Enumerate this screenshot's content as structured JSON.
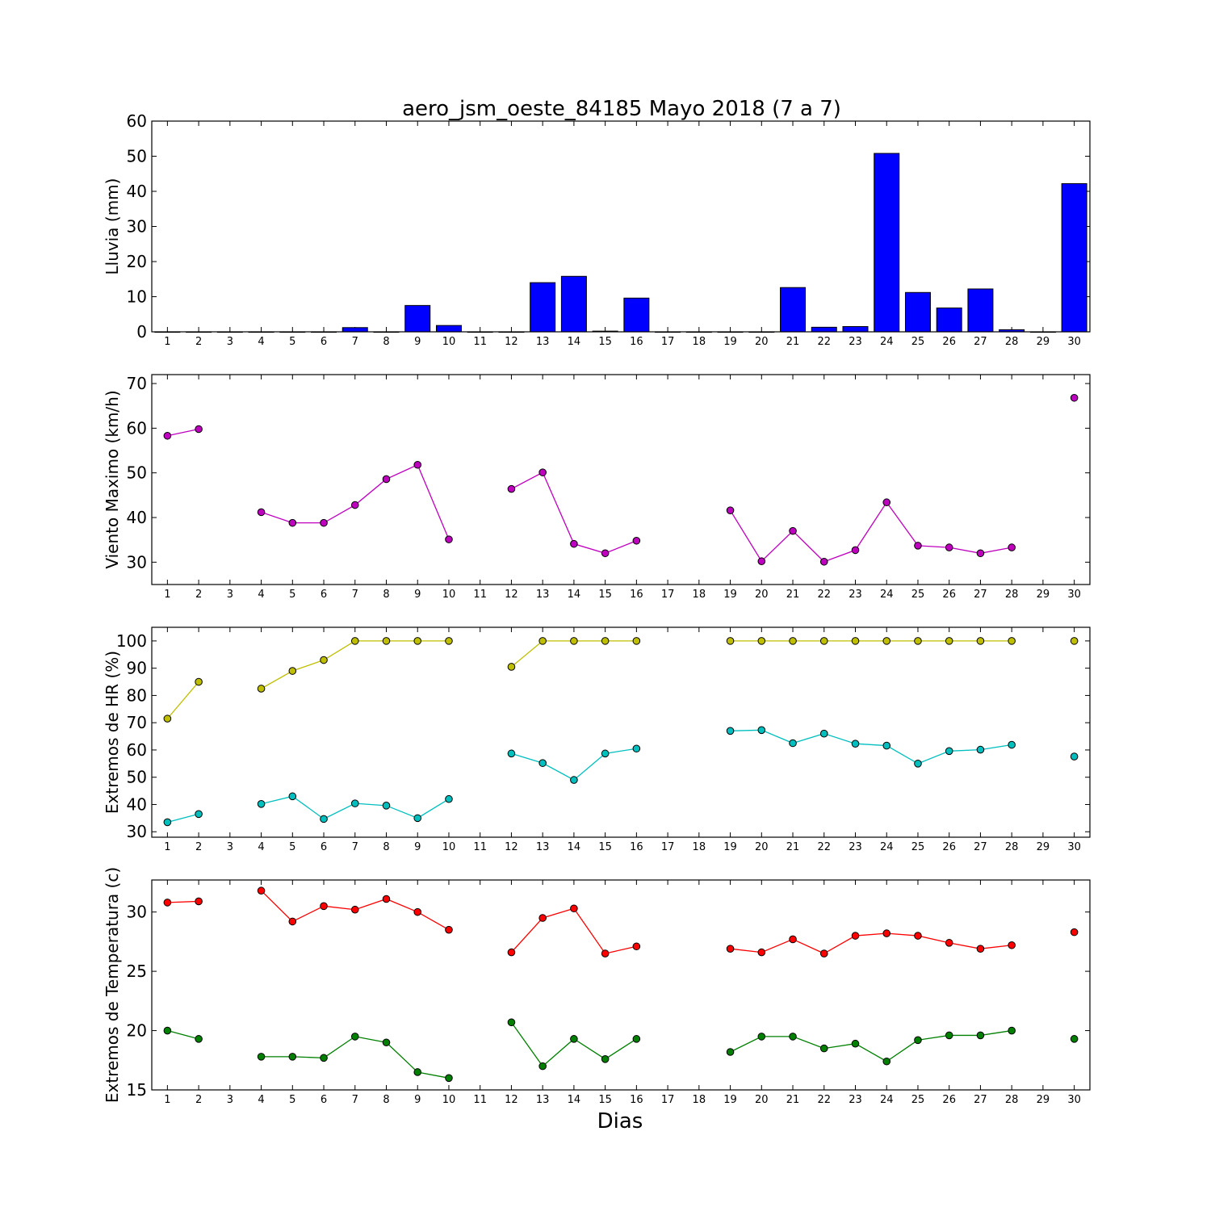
{
  "title": "aero_jsm_oeste_84185 Mayo 2018  (7 a 7)",
  "xlabel": "Dias",
  "x_ticks": [
    "1",
    "2",
    "3",
    "4",
    "5",
    "6",
    "7",
    "8",
    "9",
    "10",
    "11",
    "12",
    "13",
    "14",
    "15",
    "16",
    "17",
    "18",
    "19",
    "20",
    "21",
    "22",
    "23",
    "24",
    "25",
    "26",
    "27",
    "28",
    "29",
    "30"
  ],
  "chart_data": [
    {
      "type": "bar",
      "ylabel": "Lluvia (mm)",
      "ylim": [
        0,
        60
      ],
      "yticks": [
        0,
        10,
        20,
        30,
        40,
        50,
        60
      ],
      "color": "#0000ff",
      "x": [
        1,
        2,
        3,
        4,
        5,
        6,
        7,
        8,
        9,
        10,
        11,
        12,
        13,
        14,
        15,
        16,
        17,
        18,
        19,
        20,
        21,
        22,
        23,
        24,
        25,
        26,
        27,
        28,
        29,
        30
      ],
      "values": [
        0,
        0,
        0,
        0,
        0,
        0,
        1.2,
        0,
        7.5,
        1.8,
        0,
        0,
        14,
        15.8,
        0.2,
        9.6,
        0,
        0,
        0,
        0,
        12.6,
        1.3,
        1.5,
        50.8,
        11.2,
        6.8,
        12.2,
        0.6,
        0,
        42.2
      ]
    },
    {
      "type": "line",
      "ylabel": "Viento Maximo (km/h)",
      "ylim": [
        25,
        72
      ],
      "yticks": [
        30,
        40,
        50,
        60,
        70
      ],
      "series": [
        {
          "color": "#bf00bf",
          "x": [
            1,
            2,
            3,
            4,
            5,
            6,
            7,
            8,
            9,
            10,
            11,
            12,
            13,
            14,
            15,
            16,
            17,
            18,
            19,
            20,
            21,
            22,
            23,
            24,
            25,
            26,
            27,
            28,
            29,
            30
          ],
          "values": [
            58.3,
            59.8,
            null,
            41.2,
            38.8,
            38.8,
            42.8,
            48.6,
            51.8,
            35.1,
            null,
            46.4,
            50.1,
            34.1,
            32.0,
            34.8,
            null,
            null,
            41.6,
            30.2,
            37.0,
            30.1,
            32.7,
            43.4,
            33.7,
            33.3,
            32.0,
            33.3,
            null,
            66.8
          ]
        }
      ]
    },
    {
      "type": "line",
      "ylabel": "Extremos de HR (%)",
      "ylim": [
        28,
        105
      ],
      "yticks": [
        30,
        40,
        50,
        60,
        70,
        80,
        90,
        100
      ],
      "series": [
        {
          "color": "#bfbf00",
          "x": [
            1,
            2,
            3,
            4,
            5,
            6,
            7,
            8,
            9,
            10,
            11,
            12,
            13,
            14,
            15,
            16,
            17,
            18,
            19,
            20,
            21,
            22,
            23,
            24,
            25,
            26,
            27,
            28,
            29,
            30
          ],
          "values": [
            71.5,
            85,
            null,
            82.5,
            89,
            93,
            100,
            100,
            100,
            100,
            null,
            90.5,
            100,
            100,
            100,
            100,
            null,
            null,
            100,
            100,
            100,
            100,
            100,
            100,
            100,
            100,
            100,
            100,
            null,
            100
          ]
        },
        {
          "color": "#00bfbf",
          "x": [
            1,
            2,
            3,
            4,
            5,
            6,
            7,
            8,
            9,
            10,
            11,
            12,
            13,
            14,
            15,
            16,
            17,
            18,
            19,
            20,
            21,
            22,
            23,
            24,
            25,
            26,
            27,
            28,
            29,
            30
          ],
          "values": [
            33.5,
            36.5,
            null,
            40.2,
            43,
            34.7,
            40.4,
            39.6,
            35,
            42,
            null,
            58.7,
            55.2,
            49,
            58.7,
            60.5,
            null,
            null,
            67,
            67.3,
            62.5,
            66,
            62.3,
            61.6,
            55,
            59.6,
            60.1,
            61.9,
            null,
            57.6
          ]
        }
      ]
    },
    {
      "type": "line",
      "ylabel": "Extremos de Temperatura (c)",
      "ylim": [
        15,
        32.7
      ],
      "yticks": [
        15,
        20,
        25,
        30
      ],
      "series": [
        {
          "color": "#ff0000",
          "x": [
            1,
            2,
            3,
            4,
            5,
            6,
            7,
            8,
            9,
            10,
            11,
            12,
            13,
            14,
            15,
            16,
            17,
            18,
            19,
            20,
            21,
            22,
            23,
            24,
            25,
            26,
            27,
            28,
            29,
            30
          ],
          "values": [
            30.8,
            30.9,
            null,
            31.8,
            29.2,
            30.5,
            30.2,
            31.1,
            30.0,
            28.5,
            null,
            26.6,
            29.5,
            30.3,
            26.5,
            27.1,
            null,
            null,
            26.9,
            26.6,
            27.7,
            26.5,
            28.0,
            28.2,
            28.0,
            27.4,
            26.9,
            27.2,
            null,
            28.3
          ]
        },
        {
          "color": "#008000",
          "x": [
            1,
            2,
            3,
            4,
            5,
            6,
            7,
            8,
            9,
            10,
            11,
            12,
            13,
            14,
            15,
            16,
            17,
            18,
            19,
            20,
            21,
            22,
            23,
            24,
            25,
            26,
            27,
            28,
            29,
            30
          ],
          "values": [
            20.0,
            19.3,
            null,
            17.8,
            17.8,
            17.7,
            19.5,
            19.0,
            16.5,
            16.0,
            null,
            20.7,
            17.0,
            19.3,
            17.6,
            19.3,
            null,
            null,
            18.2,
            19.5,
            19.5,
            18.5,
            18.9,
            17.4,
            19.2,
            19.6,
            19.6,
            20.0,
            null,
            19.3
          ]
        }
      ]
    }
  ]
}
